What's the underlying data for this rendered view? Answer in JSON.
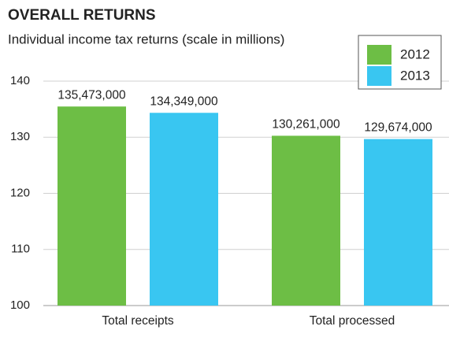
{
  "chart_data": {
    "type": "bar",
    "title": "OVERALL RETURNS",
    "subtitle": "Individual income tax returns (scale in millions)",
    "categories": [
      "Total receipts",
      "Total processed"
    ],
    "series": [
      {
        "name": "2012",
        "color": "#6dbe45",
        "values": [
          135.473,
          130.261
        ],
        "value_labels": [
          "135,473,000",
          "130,261,000"
        ]
      },
      {
        "name": "2013",
        "color": "#39c6f1",
        "values": [
          134.349,
          129.674
        ],
        "value_labels": [
          "134,349,000",
          "129,674,000"
        ]
      }
    ],
    "ylim": [
      100,
      140
    ],
    "yticks": [
      100,
      110,
      120,
      130,
      140
    ],
    "grid": true,
    "legend": "top-right"
  }
}
